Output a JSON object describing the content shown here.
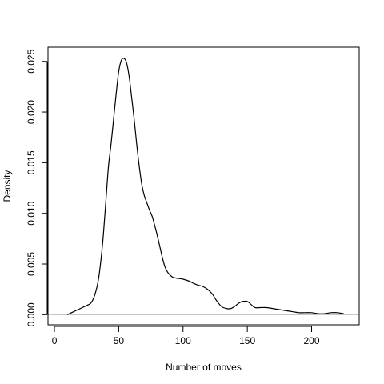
{
  "chart_data": {
    "type": "line",
    "title": "",
    "xlabel": "Number of moves",
    "ylabel": "Density",
    "xlim": [
      -5,
      237
    ],
    "ylim": [
      -0.001,
      0.0264
    ],
    "x_ticks": [
      0,
      50,
      100,
      150,
      200
    ],
    "x_tick_labels": [
      "0",
      "50",
      "100",
      "150",
      "200"
    ],
    "y_ticks": [
      0,
      0.005,
      0.01,
      0.015,
      0.02,
      0.025
    ],
    "y_tick_labels": [
      "0.000",
      "0.005",
      "0.010",
      "0.015",
      "0.020",
      "0.025"
    ],
    "grid": false,
    "legend": "none",
    "zero_line": true,
    "colors": {
      "curve": "#000000",
      "zero_line": "#bebebe",
      "frame": "#000000"
    },
    "series": [
      {
        "x": [
          10,
          15,
          20,
          25,
          28,
          30,
          32,
          34,
          36,
          38,
          40,
          42,
          44,
          46,
          48,
          50,
          52,
          54,
          56,
          58,
          60,
          62,
          64,
          66,
          68,
          70,
          72,
          74,
          76,
          78,
          80,
          82,
          84,
          86,
          88,
          90,
          92,
          95,
          100,
          105,
          108,
          112,
          115,
          118,
          120,
          123,
          126,
          130,
          134,
          137,
          140,
          143,
          146,
          150,
          153,
          156,
          160,
          165,
          170,
          175,
          180,
          185,
          190,
          195,
          200,
          205,
          210,
          215,
          220,
          225
        ],
        "y": [
          0,
          0.0003,
          0.0006,
          0.0009,
          0.0011,
          0.0015,
          0.0022,
          0.0033,
          0.0052,
          0.0078,
          0.0112,
          0.0146,
          0.0168,
          0.0193,
          0.0218,
          0.024,
          0.0251,
          0.0253,
          0.0249,
          0.0236,
          0.0215,
          0.0193,
          0.0168,
          0.0146,
          0.0128,
          0.0117,
          0.011,
          0.0103,
          0.0097,
          0.0088,
          0.0078,
          0.0067,
          0.0056,
          0.0047,
          0.0042,
          0.0039,
          0.0037,
          0.0036,
          0.0035,
          0.0033,
          0.0031,
          0.0029,
          0.0028,
          0.0026,
          0.0024,
          0.002,
          0.0014,
          0.0008,
          0.0006,
          0.0006,
          0.0008,
          0.0011,
          0.0013,
          0.0013,
          0.001,
          0.0007,
          0.0007,
          0.0007,
          0.0006,
          0.0005,
          0.0004,
          0.0003,
          0.0002,
          0.0002,
          0.0002,
          0.0001,
          0.0001,
          0.0002,
          0.0002,
          0.0001
        ]
      }
    ]
  }
}
